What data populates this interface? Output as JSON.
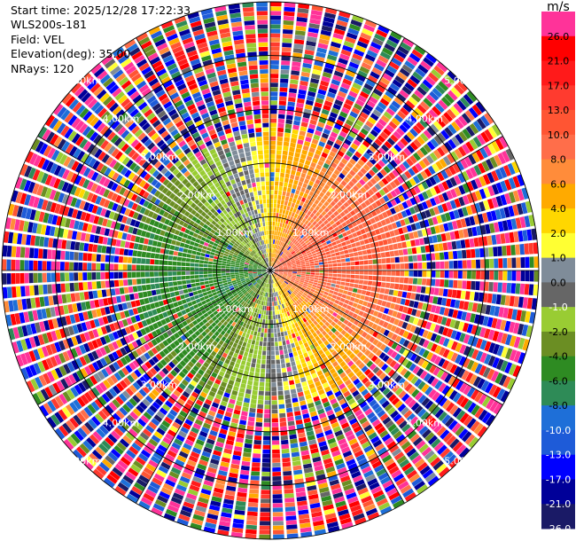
{
  "header": {
    "start_time": "Start time: 2025/12/28 17:22:33",
    "instrument": "WLS200s-181",
    "field": "Field: VEL",
    "elevation": "Elevation(deg): 35.00",
    "nrays": "NRays: 120"
  },
  "colorbar": {
    "unit": "m/s",
    "levels": [
      "26.0",
      "21.0",
      "17.0",
      "13.0",
      "10.0",
      "8.0",
      "6.0",
      "4.0",
      "2.0",
      "1.0",
      "0.0",
      "-1.0",
      "-2.0",
      "-4.0",
      "-6.0",
      "-8.0",
      "-10.0",
      "-13.0",
      "-17.0",
      "-21.0",
      "-26.0",
      "-30.0"
    ],
    "colors": [
      "#ff3399",
      "#ff0000",
      "#ff1a1a",
      "#ff3b2f",
      "#ff5533",
      "#ff6e4a",
      "#ff8c3a",
      "#ffaa00",
      "#ffd700",
      "#ffff33",
      "#7f8c99",
      "#666666",
      "#99cc33",
      "#6b8e23",
      "#2e8b22",
      "#2e8b57",
      "#1e6fd8",
      "#1e5bd8",
      "#0000ff",
      "#000099",
      "#1a1a66"
    ]
  },
  "chart_data": {
    "type": "polar-ppi",
    "title": "",
    "field": "VEL",
    "units": "m/s",
    "nrays": 120,
    "elevation_deg": 35.0,
    "range_rings_km": [
      1.0,
      2.0,
      3.0,
      4.0,
      5.0
    ],
    "ring_label_text": "km",
    "ring_labels": [
      "1.00km",
      "2.00km",
      "3.00km",
      "4.00km",
      "5.00km"
    ],
    "spoke_step_deg": 30,
    "max_range_km": 5.0,
    "pattern": {
      "inner_clean_range_km": 2.4,
      "approaching_sector": "west (negative velocities, green/blue)",
      "receding_sector": "east (positive velocities, orange/red)",
      "outer_region": "noisy / random values beyond ~2.5 km"
    }
  }
}
